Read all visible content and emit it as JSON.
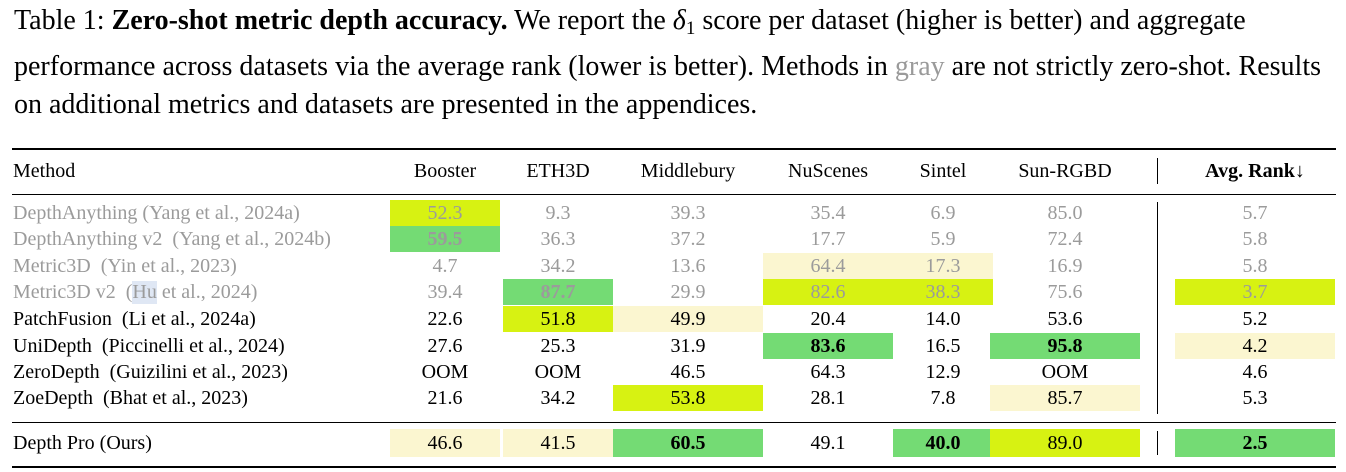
{
  "caption": {
    "prefix": "Table 1: ",
    "bold_title": "Zero-shot metric depth accuracy.",
    "text_1": " We report the ",
    "delta_symbol": "δ",
    "delta_sub": "1",
    "text_2": " score per dataset (higher is better) and aggregate performance across datasets via the average rank (lower is better). Methods in ",
    "gray_word": "gray",
    "text_3": " are not strictly zero-shot. Results on additional metrics and datasets are presented in the appendices."
  },
  "table": {
    "headers": [
      "Method",
      "Booster",
      "ETH3D",
      "Middlebury",
      "NuScenes",
      "Sintel",
      "Sun-RGBD",
      "Avg. Rank↓"
    ],
    "rows": [
      {
        "method": "DepthAnything (Yang et al., 2024a)",
        "gray": true,
        "values": [
          "52.3",
          "9.3",
          "39.3",
          "35.4",
          "6.9",
          "85.0",
          "5.7"
        ],
        "highlights": [
          "yellow",
          "",
          "",
          "",
          "",
          "",
          ""
        ],
        "bold": [
          false,
          false,
          false,
          false,
          false,
          false,
          false
        ]
      },
      {
        "method": "DepthAnything v2  (Yang et al., 2024b)",
        "gray": true,
        "values": [
          "59.5",
          "36.3",
          "37.2",
          "17.7",
          "5.9",
          "72.4",
          "5.8"
        ],
        "highlights": [
          "green",
          "",
          "",
          "",
          "",
          "",
          ""
        ],
        "bold": [
          true,
          false,
          false,
          false,
          false,
          false,
          false
        ]
      },
      {
        "method": "Metric3D  (Yin et al., 2023)",
        "gray": true,
        "values": [
          "4.7",
          "34.2",
          "13.6",
          "64.4",
          "17.3",
          "16.9",
          "5.8"
        ],
        "highlights": [
          "",
          "",
          "",
          "cream",
          "cream",
          "",
          ""
        ],
        "bold": [
          false,
          false,
          false,
          false,
          false,
          false,
          false
        ]
      },
      {
        "method_parts": [
          "Metric3D v2  (",
          "Hu",
          " et al., 2024)"
        ],
        "gray": true,
        "values": [
          "39.4",
          "87.7",
          "29.9",
          "82.6",
          "38.3",
          "75.6",
          "3.7"
        ],
        "highlights": [
          "",
          "green",
          "",
          "yellow",
          "yellow",
          "",
          "yellow"
        ],
        "bold": [
          false,
          true,
          false,
          false,
          false,
          false,
          false
        ]
      },
      {
        "method": "PatchFusion  (Li et al., 2024a)",
        "gray": false,
        "values": [
          "22.6",
          "51.8",
          "49.9",
          "20.4",
          "14.0",
          "53.6",
          "5.2"
        ],
        "highlights": [
          "",
          "yellow",
          "cream",
          "",
          "",
          "",
          ""
        ],
        "bold": [
          false,
          false,
          false,
          false,
          false,
          false,
          false
        ]
      },
      {
        "method": "UniDepth  (Piccinelli et al., 2024)",
        "gray": false,
        "values": [
          "27.6",
          "25.3",
          "31.9",
          "83.6",
          "16.5",
          "95.8",
          "4.2"
        ],
        "highlights": [
          "",
          "",
          "",
          "green",
          "",
          "green",
          "cream"
        ],
        "bold": [
          false,
          false,
          false,
          true,
          false,
          true,
          false
        ]
      },
      {
        "method": "ZeroDepth  (Guizilini et al., 2023)",
        "gray": false,
        "values": [
          "OOM",
          "OOM",
          "46.5",
          "64.3",
          "12.9",
          "OOM",
          "4.6"
        ],
        "highlights": [
          "",
          "",
          "",
          "",
          "",
          "",
          ""
        ],
        "bold": [
          false,
          false,
          false,
          false,
          false,
          false,
          false
        ]
      },
      {
        "method": "ZoeDepth  (Bhat et al., 2023)",
        "gray": false,
        "values": [
          "21.6",
          "34.2",
          "53.8",
          "28.1",
          "7.8",
          "85.7",
          "5.3"
        ],
        "highlights": [
          "",
          "",
          "yellow",
          "",
          "",
          "cream",
          ""
        ],
        "bold": [
          false,
          false,
          false,
          false,
          false,
          false,
          false
        ]
      },
      {
        "method": "Depth Pro (Ours)",
        "gray": false,
        "values": [
          "46.6",
          "41.5",
          "60.5",
          "49.1",
          "40.0",
          "89.0",
          "2.5"
        ],
        "highlights": [
          "cream",
          "cream",
          "green",
          "",
          "green",
          "yellow",
          "green"
        ],
        "bold": [
          false,
          false,
          true,
          false,
          true,
          false,
          true
        ]
      }
    ]
  },
  "colors": {
    "yellow": "#d7f212",
    "green": "#74db74",
    "cream": "#fbf6d0",
    "gray_text": "#9b9b9b"
  }
}
